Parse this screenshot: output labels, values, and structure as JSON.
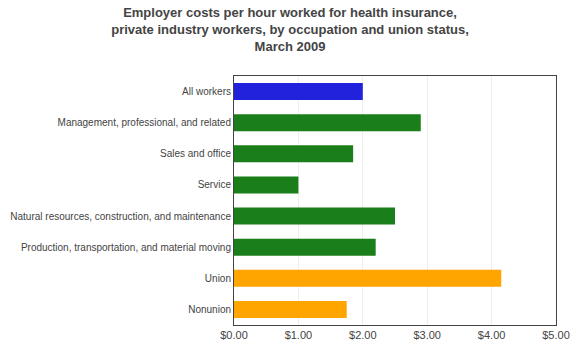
{
  "chart_data": {
    "type": "bar",
    "orientation": "horizontal",
    "title": "Employer costs per hour worked for health insurance,\nprivate industry workers, by occupation and union status,\nMarch 2009",
    "categories": [
      "Nonunion",
      "Union",
      "Production, transportation, and material moving",
      "Natural resources, construction, and maintenance",
      "Service",
      "Sales and office",
      "Management, professional, and related",
      "All workers"
    ],
    "values": [
      1.75,
      4.15,
      2.2,
      2.5,
      1.0,
      1.85,
      2.9,
      2.0
    ],
    "colors": [
      "#FFA500",
      "#FFA500",
      "#1a7e1a",
      "#1a7e1a",
      "#1a7e1a",
      "#1a7e1a",
      "#1a7e1a",
      "#2222dd"
    ],
    "xlim": [
      0,
      5.0
    ],
    "xticks": [
      {
        "value": 0.0,
        "label": "$0.00"
      },
      {
        "value": 1.0,
        "label": "$1.00"
      },
      {
        "value": 2.0,
        "label": "$2.00"
      },
      {
        "value": 3.0,
        "label": "$3.00"
      },
      {
        "value": 4.0,
        "label": "$4.00"
      },
      {
        "value": 5.0,
        "label": "$5.00"
      }
    ],
    "grid": true
  }
}
